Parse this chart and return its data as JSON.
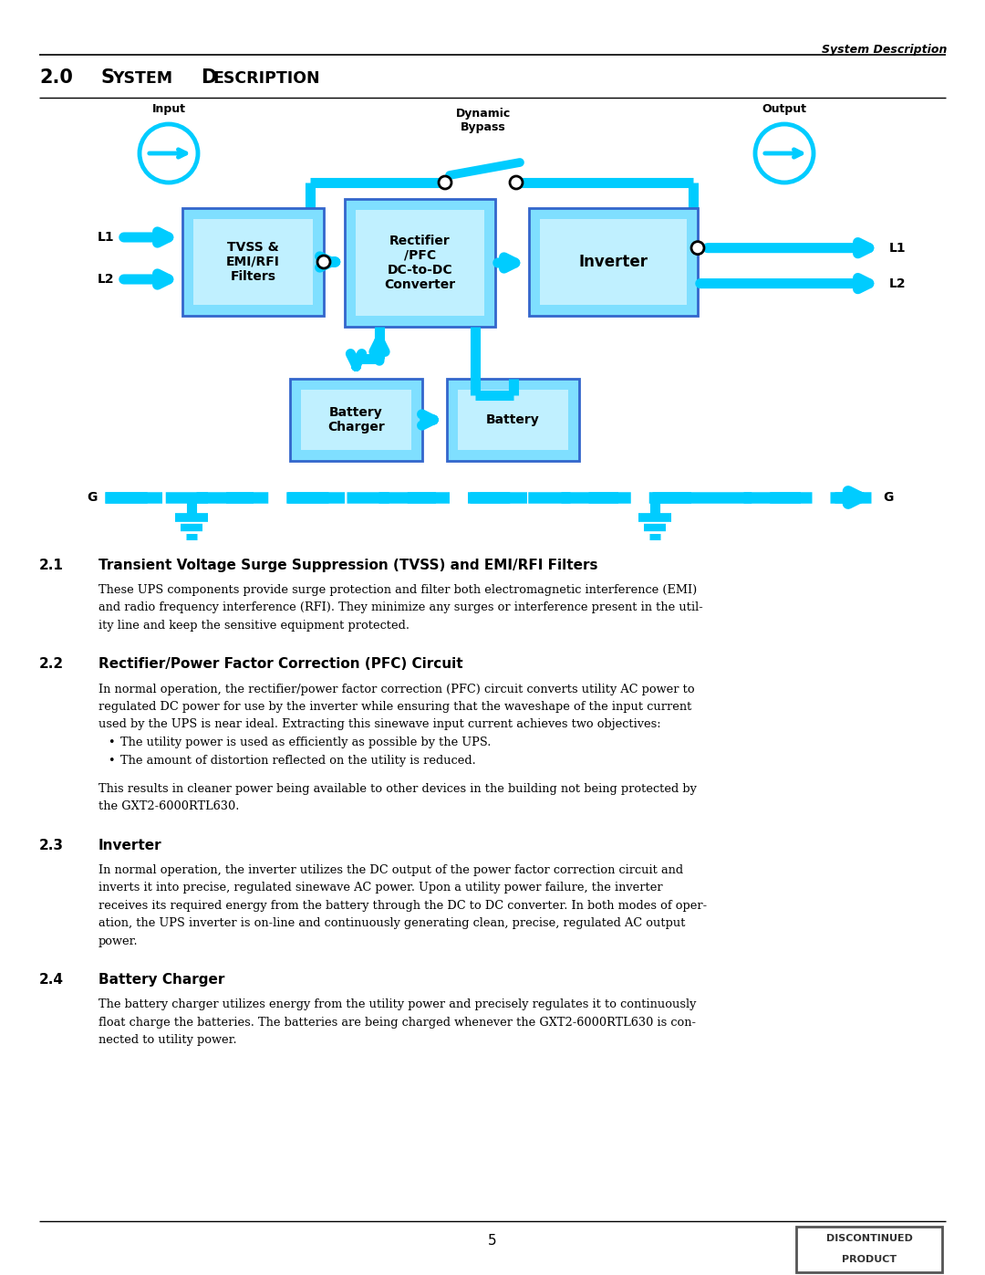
{
  "page_header_right": "System Description",
  "section_title": "2.0   SYSTEM DESCRIPTION",
  "cyan": "#00CCFF",
  "box_fill": "#7FDFFF",
  "box_fill_light": "#C0F0FF",
  "box_border": "#3366CC",
  "background": "#FFFFFF",
  "sections": [
    {
      "num": "2.1",
      "title": "Transient Voltage Surge Suppression (TVSS) and EMI/RFI Filters",
      "body": [
        "These UPS components provide surge protection and filter both electromagnetic interference (EMI)",
        "and radio frequency interference (RFI). They minimize any surges or interference present in the util-",
        "ity line and keep the sensitive equipment protected."
      ]
    },
    {
      "num": "2.2",
      "title": "Rectifier/Power Factor Correction (PFC) Circuit",
      "body": [
        "In normal operation, the rectifier/power factor correction (PFC) circuit converts utility AC power to",
        "regulated DC power for use by the inverter while ensuring that the waveshape of the input current",
        "used by the UPS is near ideal. Extracting this sinewave input current achieves two objectives:",
        "BULLET:The utility power is used as efficiently as possible by the UPS.",
        "BULLET:The amount of distortion reflected on the utility is reduced.",
        "",
        "This results in cleaner power being available to other devices in the building not being protected by",
        "the GXT2-6000RTL630."
      ]
    },
    {
      "num": "2.3",
      "title": "Inverter",
      "body": [
        "In normal operation, the inverter utilizes the DC output of the power factor correction circuit and",
        "inverts it into precise, regulated sinewave AC power. Upon a utility power failure, the inverter",
        "receives its required energy from the battery through the DC to DC converter. In both modes of oper-",
        "ation, the UPS inverter is on-line and continuously generating clean, precise, regulated AC output",
        "power."
      ]
    },
    {
      "num": "2.4",
      "title": "Battery Charger",
      "body": [
        "The battery charger utilizes energy from the utility power and precisely regulates it to continuously",
        "float charge the batteries. The batteries are being charged whenever the GXT2-6000RTL630 is con-",
        "nected to utility power."
      ]
    }
  ],
  "footer_page": "5",
  "disc_label1": "DISCONTINUED",
  "disc_label2": "PRODUCT"
}
